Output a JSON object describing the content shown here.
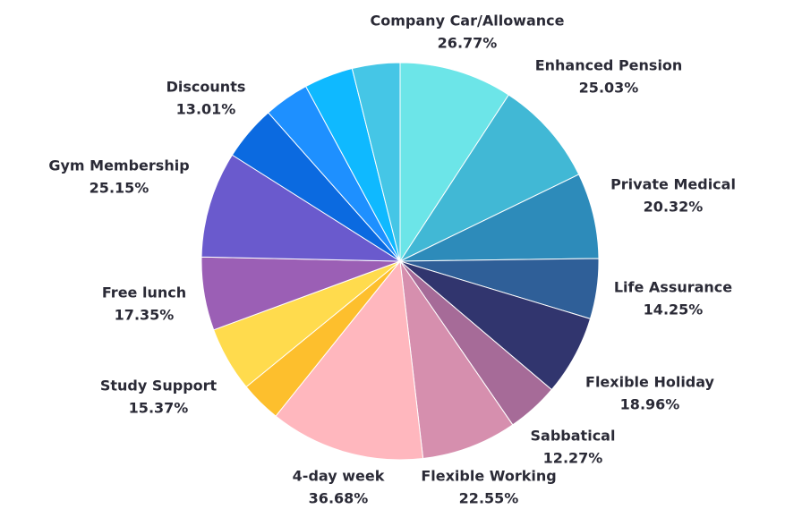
{
  "chart_data": {
    "type": "pie",
    "categories": [
      "Company Car/Allowance",
      "Enhanced Pension",
      "Private Medical",
      "Life Assurance",
      "Flexible Holiday",
      "Sabbatical",
      "Flexible Working",
      "4-day week",
      null,
      "Study Support",
      "Free lunch",
      "Gym Membership",
      "Discounts",
      null,
      null,
      null
    ],
    "values": [
      26.77,
      25.03,
      20.32,
      14.25,
      18.96,
      12.27,
      22.55,
      36.68,
      9.7,
      15.37,
      17.35,
      25.15,
      13.01,
      10.7,
      11.6,
      11.3
    ],
    "value_labels": [
      "26.77%",
      "25.03%",
      "20.32%",
      "14.25%",
      "18.96%",
      "12.27%",
      "22.55%",
      "36.68%",
      null,
      "15.37%",
      "17.35%",
      "25.15%",
      "13.01%",
      null,
      null,
      null
    ],
    "colors": [
      "#6ce5e8",
      "#41b8d5",
      "#2d8bba",
      "#2f5f98",
      "#31356e",
      "#a66b98",
      "#d68fae",
      "#ffb7be",
      "#fdbf2d",
      "#ffdb4d",
      "#9b5fb5",
      "#6a5acd",
      "#0b6ae0",
      "#1e90ff",
      "#0fb9ff",
      "#45c6e6"
    ]
  }
}
